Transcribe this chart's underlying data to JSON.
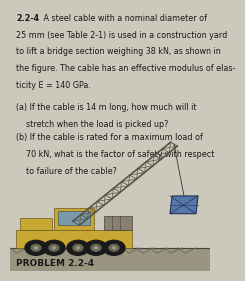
{
  "title_bold": "2.2-4",
  "line1_rest": " A steel cable with a nominal diameter of",
  "lines_intro": [
    "25 mm (see Table 2-1) is used in a construction yard",
    "to lift a bridge section weighing 38 kN, as shown in",
    "the figure. The cable has an effective modulus of elas-",
    "ticity E = 140 GPa."
  ],
  "part_a_line1": "(a) If the cable is 14 m long, how much will it",
  "part_a_line2": "    stretch when the load is picked up?",
  "part_b_line1": "(b) If the cable is rated for a maximum load of",
  "part_b_line2": "    70 kN, what is the factor of safety with respect",
  "part_b_line3": "    to failure of the cable?",
  "footer": "PROBLEM 2.2-4",
  "bg_color": "#ccc8bc",
  "text_color": "#1a1a1a",
  "font_size_body": 5.8,
  "font_size_footer": 6.5,
  "truck_color": "#c8a832",
  "truck_edge": "#6b5a1e",
  "wheel_color": "#1a1a1a",
  "cab_window_color": "#7a9aaa",
  "counterweight_color": "#888070",
  "boom_color": "#555545",
  "load_color": "#5577aa",
  "load_edge": "#223355",
  "ground_color": "#9a9580",
  "ground_dark": "#6b6858"
}
